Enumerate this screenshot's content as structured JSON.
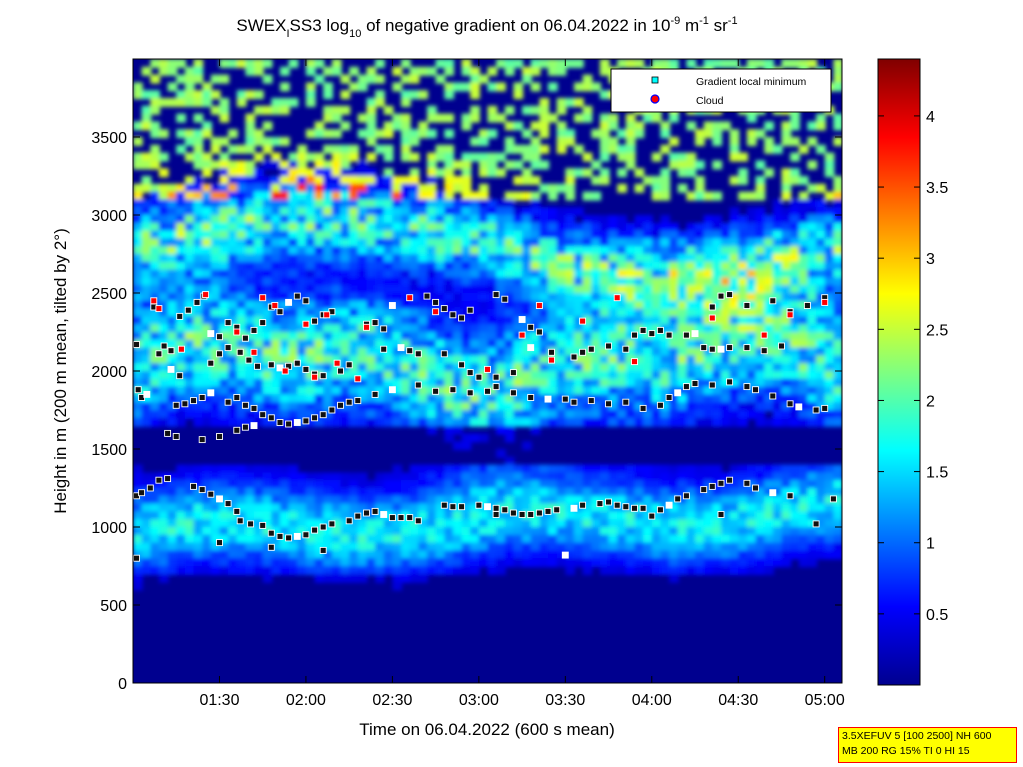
{
  "chart_data": {
    "type": "heatmap",
    "title": {
      "p1": "SWEX",
      "p1_sub": "I",
      "p2": "SS3 log",
      "p2_sub": "10",
      "p3": " of negative gradient on 06.04.2022 in 10",
      "p3_sup": "-9",
      "p4": " m",
      "p4_sup": "-1",
      "p5": " sr",
      "p5_sup": "-1"
    },
    "xlabel": "Time on 06.04.2022 (600 s mean)",
    "ylabel": "Height in m (200 m mean, tilted by 2°)",
    "xlim_hours": [
      1.0,
      5.1
    ],
    "ylim": [
      0,
      4000
    ],
    "x_ticks": [
      {
        "v": 1.5,
        "label": "01:30"
      },
      {
        "v": 2.0,
        "label": "02:00"
      },
      {
        "v": 2.5,
        "label": "02:30"
      },
      {
        "v": 3.0,
        "label": "03:00"
      },
      {
        "v": 3.5,
        "label": "03:30"
      },
      {
        "v": 4.0,
        "label": "04:00"
      },
      {
        "v": 4.5,
        "label": "04:30"
      },
      {
        "v": 5.0,
        "label": "05:00"
      }
    ],
    "y_ticks": [
      {
        "v": 0,
        "label": "0"
      },
      {
        "v": 500,
        "label": "500"
      },
      {
        "v": 1000,
        "label": "1000"
      },
      {
        "v": 1500,
        "label": "1500"
      },
      {
        "v": 2000,
        "label": "2000"
      },
      {
        "v": 2500,
        "label": "2500"
      },
      {
        "v": 3000,
        "label": "3000"
      },
      {
        "v": 3500,
        "label": "3500"
      }
    ],
    "colorbar": {
      "lim": [
        0,
        4.4
      ],
      "ticks": [
        {
          "v": 0.5,
          "label": "0.5"
        },
        {
          "v": 1,
          "label": "1"
        },
        {
          "v": 1.5,
          "label": "1.5"
        },
        {
          "v": 2,
          "label": "2"
        },
        {
          "v": 2.5,
          "label": "2.5"
        },
        {
          "v": 3,
          "label": "3"
        },
        {
          "v": 3.5,
          "label": "3.5"
        },
        {
          "v": 4,
          "label": "4"
        }
      ]
    },
    "legend": {
      "placement": "top-right",
      "entries": [
        {
          "label": "Gradient local minimum",
          "marker": "square",
          "color": "#00ffff"
        },
        {
          "label": "Cloud",
          "marker": "circle",
          "color": "#ff0000"
        }
      ]
    },
    "series": [
      {
        "name": "Gradient local minimum",
        "points": [
          [
            1.02,
            2170
          ],
          [
            1.03,
            1880
          ],
          [
            1.05,
            1830
          ],
          [
            1.08,
            1850
          ],
          [
            1.12,
            2410
          ],
          [
            1.15,
            2110
          ],
          [
            1.18,
            2160
          ],
          [
            1.22,
            2130
          ],
          [
            1.27,
            2350
          ],
          [
            1.32,
            2390
          ],
          [
            1.37,
            2440
          ],
          [
            1.41,
            2480
          ],
          [
            1.45,
            2240
          ],
          [
            1.5,
            2220
          ],
          [
            1.55,
            2310
          ],
          [
            1.6,
            2280
          ],
          [
            1.65,
            2210
          ],
          [
            1.7,
            2260
          ],
          [
            1.75,
            2310
          ],
          [
            1.8,
            2410
          ],
          [
            1.85,
            2380
          ],
          [
            1.9,
            2440
          ],
          [
            1.95,
            2480
          ],
          [
            2.0,
            2450
          ],
          [
            2.05,
            2320
          ],
          [
            2.1,
            2360
          ],
          [
            2.15,
            2380
          ],
          [
            2.35,
            2300
          ],
          [
            2.4,
            2310
          ],
          [
            2.45,
            2270
          ],
          [
            2.5,
            2420
          ],
          [
            2.7,
            2480
          ],
          [
            2.75,
            2440
          ],
          [
            2.8,
            2400
          ],
          [
            2.85,
            2360
          ],
          [
            2.9,
            2340
          ],
          [
            2.95,
            2390
          ],
          [
            3.1,
            2490
          ],
          [
            3.15,
            2460
          ],
          [
            3.25,
            2330
          ],
          [
            3.3,
            2280
          ],
          [
            3.35,
            2250
          ],
          [
            3.9,
            2230
          ],
          [
            3.95,
            2260
          ],
          [
            4.0,
            2240
          ],
          [
            4.05,
            2260
          ],
          [
            4.1,
            2230
          ],
          [
            4.2,
            2230
          ],
          [
            4.25,
            2240
          ],
          [
            4.35,
            2410
          ],
          [
            4.4,
            2480
          ],
          [
            4.45,
            2490
          ],
          [
            4.55,
            2420
          ],
          [
            4.7,
            2450
          ],
          [
            4.8,
            2380
          ],
          [
            4.9,
            2420
          ],
          [
            5.0,
            2470
          ],
          [
            1.22,
            2010
          ],
          [
            1.27,
            1970
          ],
          [
            1.45,
            2050
          ],
          [
            1.5,
            2110
          ],
          [
            1.55,
            2150
          ],
          [
            1.62,
            2120
          ],
          [
            1.67,
            2070
          ],
          [
            1.72,
            2030
          ],
          [
            1.8,
            2040
          ],
          [
            1.85,
            2020
          ],
          [
            1.9,
            2030
          ],
          [
            1.95,
            2050
          ],
          [
            2.0,
            2010
          ],
          [
            2.05,
            1980
          ],
          [
            2.1,
            1970
          ],
          [
            2.2,
            2000
          ],
          [
            2.25,
            2040
          ],
          [
            2.45,
            2140
          ],
          [
            2.55,
            2150
          ],
          [
            2.6,
            2130
          ],
          [
            2.65,
            2110
          ],
          [
            2.8,
            2110
          ],
          [
            2.9,
            2040
          ],
          [
            2.95,
            1990
          ],
          [
            3.0,
            1960
          ],
          [
            3.1,
            1960
          ],
          [
            3.2,
            1990
          ],
          [
            3.3,
            2150
          ],
          [
            3.42,
            2120
          ],
          [
            3.55,
            2090
          ],
          [
            3.6,
            2120
          ],
          [
            3.65,
            2140
          ],
          [
            3.75,
            2160
          ],
          [
            3.85,
            2140
          ],
          [
            4.3,
            2150
          ],
          [
            4.35,
            2140
          ],
          [
            4.4,
            2140
          ],
          [
            4.45,
            2150
          ],
          [
            4.55,
            2150
          ],
          [
            4.65,
            2130
          ],
          [
            4.75,
            2160
          ],
          [
            1.25,
            1780
          ],
          [
            1.3,
            1790
          ],
          [
            1.35,
            1810
          ],
          [
            1.4,
            1830
          ],
          [
            1.45,
            1860
          ],
          [
            1.55,
            1800
          ],
          [
            1.6,
            1830
          ],
          [
            1.65,
            1780
          ],
          [
            1.7,
            1760
          ],
          [
            1.75,
            1720
          ],
          [
            1.8,
            1700
          ],
          [
            1.85,
            1670
          ],
          [
            1.9,
            1660
          ],
          [
            1.95,
            1670
          ],
          [
            2.0,
            1680
          ],
          [
            2.05,
            1700
          ],
          [
            2.1,
            1720
          ],
          [
            2.15,
            1750
          ],
          [
            2.2,
            1780
          ],
          [
            2.25,
            1800
          ],
          [
            2.3,
            1810
          ],
          [
            2.4,
            1850
          ],
          [
            2.5,
            1880
          ],
          [
            2.65,
            1910
          ],
          [
            2.75,
            1870
          ],
          [
            2.85,
            1880
          ],
          [
            2.95,
            1860
          ],
          [
            3.05,
            1870
          ],
          [
            3.1,
            1900
          ],
          [
            3.2,
            1860
          ],
          [
            3.3,
            1830
          ],
          [
            3.4,
            1820
          ],
          [
            3.5,
            1820
          ],
          [
            3.55,
            1800
          ],
          [
            3.65,
            1810
          ],
          [
            3.75,
            1790
          ],
          [
            3.85,
            1800
          ],
          [
            3.95,
            1760
          ],
          [
            4.05,
            1780
          ],
          [
            4.1,
            1830
          ],
          [
            4.15,
            1860
          ],
          [
            4.2,
            1900
          ],
          [
            4.25,
            1920
          ],
          [
            4.35,
            1910
          ],
          [
            4.45,
            1930
          ],
          [
            4.55,
            1900
          ],
          [
            4.6,
            1880
          ],
          [
            4.7,
            1840
          ],
          [
            4.8,
            1790
          ],
          [
            4.85,
            1770
          ],
          [
            4.95,
            1750
          ],
          [
            5.0,
            1760
          ],
          [
            1.2,
            1600
          ],
          [
            1.25,
            1580
          ],
          [
            1.4,
            1560
          ],
          [
            1.5,
            1580
          ],
          [
            1.6,
            1620
          ],
          [
            1.65,
            1640
          ],
          [
            1.7,
            1650
          ],
          [
            1.02,
            1200
          ],
          [
            1.05,
            1220
          ],
          [
            1.1,
            1250
          ],
          [
            1.15,
            1300
          ],
          [
            1.2,
            1310
          ],
          [
            1.35,
            1260
          ],
          [
            1.4,
            1240
          ],
          [
            1.45,
            1210
          ],
          [
            1.5,
            1180
          ],
          [
            1.55,
            1150
          ],
          [
            1.6,
            1100
          ],
          [
            1.62,
            1040
          ],
          [
            1.68,
            1020
          ],
          [
            1.75,
            1010
          ],
          [
            1.8,
            960
          ],
          [
            1.85,
            940
          ],
          [
            1.9,
            930
          ],
          [
            1.95,
            940
          ],
          [
            2.0,
            950
          ],
          [
            2.05,
            980
          ],
          [
            2.1,
            1000
          ],
          [
            2.15,
            1020
          ],
          [
            2.25,
            1040
          ],
          [
            2.3,
            1070
          ],
          [
            2.35,
            1090
          ],
          [
            2.4,
            1100
          ],
          [
            2.45,
            1080
          ],
          [
            2.5,
            1060
          ],
          [
            2.55,
            1060
          ],
          [
            2.6,
            1060
          ],
          [
            2.65,
            1040
          ],
          [
            2.8,
            1140
          ],
          [
            2.85,
            1130
          ],
          [
            2.9,
            1130
          ],
          [
            3.0,
            1140
          ],
          [
            3.05,
            1130
          ],
          [
            3.1,
            1120
          ],
          [
            3.15,
            1110
          ],
          [
            3.2,
            1090
          ],
          [
            3.25,
            1080
          ],
          [
            3.3,
            1080
          ],
          [
            3.35,
            1090
          ],
          [
            3.4,
            1100
          ],
          [
            3.45,
            1110
          ],
          [
            3.55,
            1120
          ],
          [
            3.6,
            1140
          ],
          [
            3.7,
            1150
          ],
          [
            3.75,
            1160
          ],
          [
            3.8,
            1140
          ],
          [
            3.85,
            1130
          ],
          [
            3.9,
            1120
          ],
          [
            3.95,
            1120
          ],
          [
            4.05,
            1110
          ],
          [
            4.1,
            1140
          ],
          [
            4.15,
            1180
          ],
          [
            4.2,
            1200
          ],
          [
            4.3,
            1240
          ],
          [
            4.35,
            1260
          ],
          [
            4.4,
            1280
          ],
          [
            4.45,
            1300
          ],
          [
            4.55,
            1280
          ],
          [
            4.6,
            1250
          ],
          [
            4.7,
            1220
          ],
          [
            4.8,
            1200
          ],
          [
            4.95,
            1020
          ],
          [
            5.05,
            1180
          ],
          [
            1.02,
            800
          ],
          [
            1.5,
            900
          ],
          [
            1.8,
            870
          ],
          [
            2.1,
            850
          ],
          [
            3.1,
            1080
          ],
          [
            3.5,
            820
          ],
          [
            4.0,
            1070
          ],
          [
            4.4,
            1080
          ]
        ]
      },
      {
        "name": "Cloud",
        "points": [
          [
            1.12,
            2450
          ],
          [
            1.15,
            2400
          ],
          [
            1.28,
            2140
          ],
          [
            1.42,
            2490
          ],
          [
            1.6,
            2250
          ],
          [
            1.75,
            2470
          ],
          [
            1.82,
            2420
          ],
          [
            1.88,
            2000
          ],
          [
            2.0,
            2300
          ],
          [
            2.05,
            1960
          ],
          [
            2.12,
            2360
          ],
          [
            2.18,
            2050
          ],
          [
            2.3,
            1950
          ],
          [
            2.35,
            2280
          ],
          [
            2.6,
            2470
          ],
          [
            2.75,
            2380
          ],
          [
            3.05,
            2010
          ],
          [
            3.25,
            2230
          ],
          [
            3.35,
            2420
          ],
          [
            3.42,
            2070
          ],
          [
            3.6,
            2320
          ],
          [
            3.8,
            2470
          ],
          [
            3.9,
            2060
          ],
          [
            4.35,
            2340
          ],
          [
            4.65,
            2230
          ],
          [
            4.8,
            2360
          ],
          [
            5.0,
            2440
          ],
          [
            1.7,
            2120
          ]
        ]
      }
    ]
  },
  "info_box": {
    "line1": "3.5XEFUV 5 [100 2500] NH 600",
    "line2": "MB 200 RG 15% TI 0 HI 15"
  },
  "colors": {
    "background": "#ffffff",
    "axes_bg": "#00008f",
    "info_bg": "#ffff00",
    "info_border": "#ff0000"
  }
}
